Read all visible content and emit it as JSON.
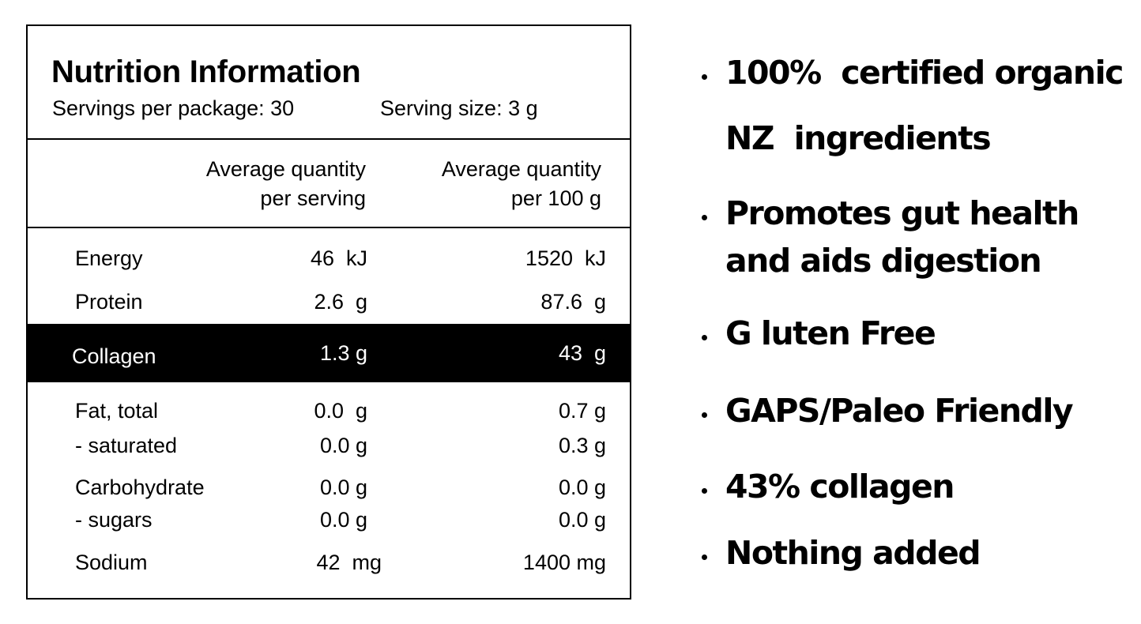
{
  "panel": {
    "title": "Nutrition Information",
    "servings_per_package": "Servings per package: 30",
    "serving_size": "Serving size: 3 g",
    "columns": {
      "per_serving_line1": "Average quantity",
      "per_serving_line2": "per serving",
      "per_100g_line1": "Average quantity",
      "per_100g_line2": "per 100 g"
    },
    "rows": [
      {
        "label": "Energy",
        "per_serving": "46  kJ",
        "per_100g": "1520  kJ"
      },
      {
        "label": "Protein",
        "per_serving": "2.6  g",
        "per_100g": "87.6  g"
      },
      {
        "label": "Collagen",
        "per_serving": "1.3 g",
        "per_100g": "43  g"
      },
      {
        "label": "Fat, total",
        "per_serving": "0.0  g",
        "per_100g": "0.7 g"
      },
      {
        "label": "- saturated",
        "per_serving": "0.0 g",
        "per_100g": "0.3 g"
      },
      {
        "label": "Carbohydrate",
        "per_serving": "0.0 g",
        "per_100g": "0.0 g"
      },
      {
        "label": "- sugars",
        "per_serving": "0.0 g",
        "per_100g": "0.0 g"
      },
      {
        "label": "Sodium",
        "per_serving": "42  mg",
        "per_100g": "1400 mg"
      }
    ]
  },
  "bullets": [
    "100%  certified organic",
    "NZ  ingredients",
    "Promotes gut health",
    "and aids digestion",
    "G luten Free",
    "GAPS/Paleo Friendly",
    "43% collagen",
    "Nothing added"
  ]
}
